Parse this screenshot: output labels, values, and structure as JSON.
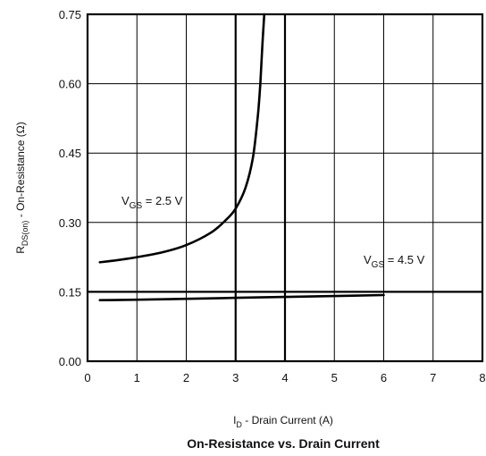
{
  "chart_data": {
    "type": "line",
    "title": "On-Resistance vs. Drain Current",
    "xlabel": {
      "prefix": "I",
      "sub": "D",
      "suffix": " - Drain Current (A)"
    },
    "ylabel": {
      "prefix": "R",
      "sub": "DS(on)",
      "suffix": " - On-Resistance (Ω)"
    },
    "xlim": [
      0,
      8
    ],
    "ylim": [
      0,
      0.75
    ],
    "xticks": [
      "0",
      "1",
      "2",
      "3",
      "4",
      "5",
      "6",
      "7",
      "8"
    ],
    "yticks": [
      "0.00",
      "0.15",
      "0.30",
      "0.45",
      "0.60",
      "0.75"
    ],
    "grid": true,
    "series": [
      {
        "label": {
          "prefix": "V",
          "sub": "GS",
          "suffix": " = 2.5 V"
        },
        "points": [
          [
            0.25,
            0.214
          ],
          [
            0.5,
            0.217
          ],
          [
            1.0,
            0.225
          ],
          [
            1.5,
            0.235
          ],
          [
            2.0,
            0.251
          ],
          [
            2.5,
            0.278
          ],
          [
            2.8,
            0.305
          ],
          [
            3.0,
            0.33
          ],
          [
            3.2,
            0.375
          ],
          [
            3.35,
            0.44
          ],
          [
            3.45,
            0.53
          ],
          [
            3.5,
            0.6
          ],
          [
            3.54,
            0.68
          ],
          [
            3.58,
            0.75
          ]
        ]
      },
      {
        "label": {
          "prefix": "V",
          "sub": "GS",
          "suffix": " = 4.5 V"
        },
        "points": [
          [
            0.25,
            0.132
          ],
          [
            1.0,
            0.133
          ],
          [
            2.0,
            0.135
          ],
          [
            3.0,
            0.137
          ],
          [
            4.0,
            0.139
          ],
          [
            5.0,
            0.141
          ],
          [
            6.0,
            0.143
          ]
        ]
      }
    ]
  }
}
